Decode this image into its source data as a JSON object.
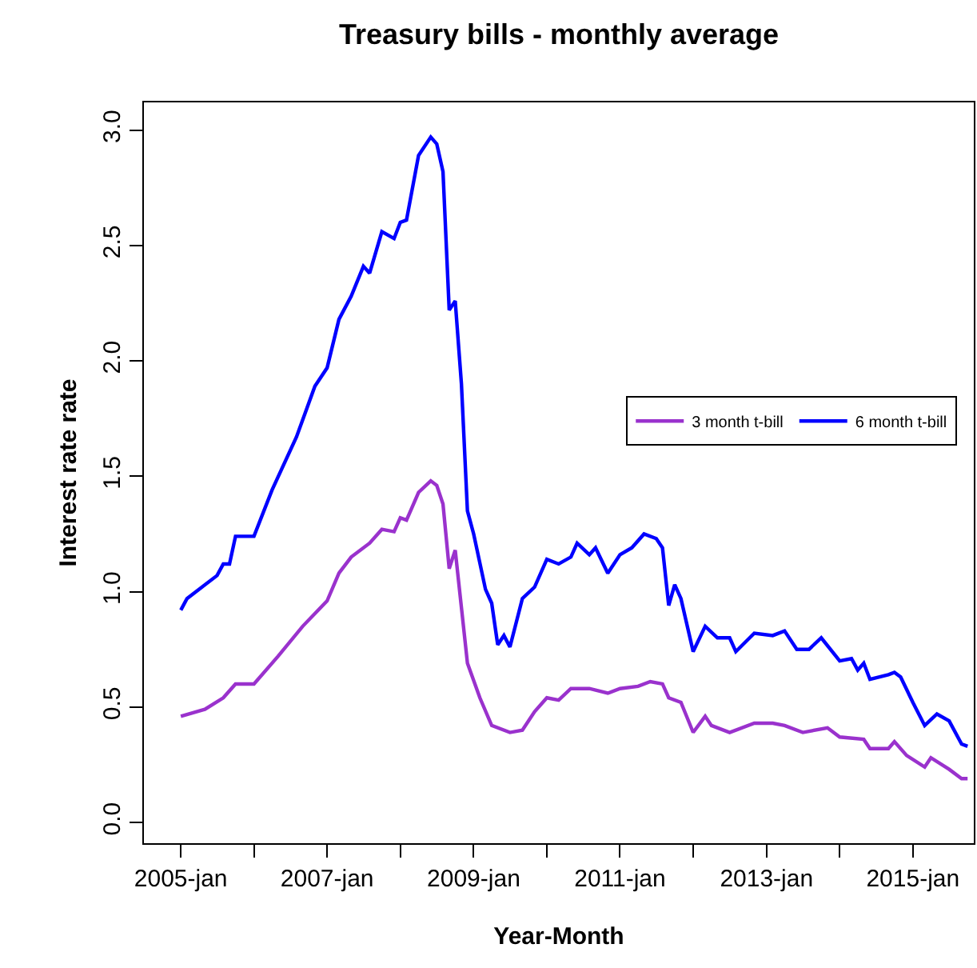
{
  "chart_data": {
    "type": "line",
    "title": "Treasury bills - monthly average",
    "xlabel": "Year-Month",
    "ylabel": "Interest rate rate",
    "xlim": [
      "2004-07",
      "2015-11"
    ],
    "xticks": [
      {
        "value": "2005-01",
        "label": "2005-jan"
      },
      {
        "value": "2006-01",
        "label": null
      },
      {
        "value": "2007-01",
        "label": "2007-jan"
      },
      {
        "value": "2008-01",
        "label": null
      },
      {
        "value": "2009-01",
        "label": "2009-jan"
      },
      {
        "value": "2010-01",
        "label": null
      },
      {
        "value": "2011-01",
        "label": "2011-jan"
      },
      {
        "value": "2012-01",
        "label": null
      },
      {
        "value": "2013-01",
        "label": "2013-jan"
      },
      {
        "value": "2014-01",
        "label": null
      },
      {
        "value": "2015-01",
        "label": "2015-jan"
      }
    ],
    "ylim": [
      -0.09,
      3.12
    ],
    "yticks": [
      {
        "value": 0,
        "label": "0.0"
      },
      {
        "value": 0.5,
        "label": "0.5"
      },
      {
        "value": 1,
        "label": "1.0"
      },
      {
        "value": 1.5,
        "label": "1.5"
      },
      {
        "value": 2,
        "label": "2.0"
      },
      {
        "value": 2.5,
        "label": "2.5"
      },
      {
        "value": 3,
        "label": "3.0"
      }
    ],
    "grid": false,
    "legend": "right",
    "marker": "none",
    "line_style": "solid",
    "series": [
      {
        "name": "3 month t-bill",
        "color": "#9a32cd",
        "x": [
          "2005-01",
          "2005-05",
          "2005-08",
          "2005-10",
          "2006-01",
          "2006-05",
          "2006-09",
          "2007-01",
          "2007-03",
          "2007-05",
          "2007-08",
          "2007-10",
          "2007-12",
          "2008-01",
          "2008-02",
          "2008-04",
          "2008-06",
          "2008-07",
          "2008-08",
          "2008-09",
          "2008-10",
          "2008-12",
          "2009-02",
          "2009-04",
          "2009-07",
          "2009-09",
          "2009-11",
          "2010-01",
          "2010-03",
          "2010-05",
          "2010-08",
          "2010-11",
          "2011-01",
          "2011-04",
          "2011-06",
          "2011-08",
          "2011-09",
          "2011-11",
          "2012-01",
          "2012-03",
          "2012-04",
          "2012-07",
          "2012-11",
          "2013-02",
          "2013-04",
          "2013-07",
          "2013-11",
          "2014-01",
          "2014-05",
          "2014-06",
          "2014-09",
          "2014-10",
          "2014-12",
          "2015-03",
          "2015-04",
          "2015-07",
          "2015-09",
          "2015-10"
        ],
        "values": [
          0.46,
          0.49,
          0.54,
          0.6,
          0.6,
          0.72,
          0.85,
          0.96,
          1.08,
          1.15,
          1.21,
          1.27,
          1.26,
          1.32,
          1.31,
          1.43,
          1.48,
          1.46,
          1.38,
          1.1,
          1.18,
          0.69,
          0.54,
          0.42,
          0.39,
          0.4,
          0.48,
          0.54,
          0.53,
          0.58,
          0.58,
          0.56,
          0.58,
          0.59,
          0.61,
          0.6,
          0.54,
          0.52,
          0.39,
          0.46,
          0.42,
          0.39,
          0.43,
          0.43,
          0.42,
          0.39,
          0.41,
          0.37,
          0.36,
          0.32,
          0.32,
          0.35,
          0.29,
          0.24,
          0.28,
          0.23,
          0.19,
          0.19
        ]
      },
      {
        "name": "6 month t-bill",
        "color": "#0000ff",
        "x": [
          "2005-01",
          "2005-02",
          "2005-07",
          "2005-08",
          "2005-09",
          "2005-10",
          "2006-01",
          "2006-04",
          "2006-08",
          "2006-11",
          "2007-01",
          "2007-03",
          "2007-05",
          "2007-07",
          "2007-08",
          "2007-10",
          "2007-12",
          "2008-01",
          "2008-02",
          "2008-04",
          "2008-06",
          "2008-07",
          "2008-08",
          "2008-09",
          "2008-10",
          "2008-11",
          "2008-12",
          "2009-01",
          "2009-03",
          "2009-04",
          "2009-05",
          "2009-06",
          "2009-07",
          "2009-09",
          "2009-11",
          "2010-01",
          "2010-03",
          "2010-05",
          "2010-06",
          "2010-08",
          "2010-09",
          "2010-11",
          "2011-01",
          "2011-03",
          "2011-05",
          "2011-07",
          "2011-08",
          "2011-09",
          "2011-10",
          "2011-11",
          "2012-01",
          "2012-03",
          "2012-05",
          "2012-07",
          "2012-08",
          "2012-11",
          "2013-02",
          "2013-04",
          "2013-06",
          "2013-08",
          "2013-10",
          "2014-01",
          "2014-03",
          "2014-04",
          "2014-05",
          "2014-06",
          "2014-09",
          "2014-10",
          "2014-11",
          "2015-01",
          "2015-03",
          "2015-05",
          "2015-07",
          "2015-09",
          "2015-10"
        ],
        "values": [
          0.92,
          0.97,
          1.07,
          1.12,
          1.12,
          1.24,
          1.24,
          1.44,
          1.67,
          1.89,
          1.97,
          2.18,
          2.28,
          2.41,
          2.38,
          2.56,
          2.53,
          2.6,
          2.61,
          2.89,
          2.97,
          2.94,
          2.82,
          2.22,
          2.26,
          1.9,
          1.35,
          1.25,
          1.01,
          0.95,
          0.77,
          0.81,
          0.76,
          0.97,
          1.02,
          1.14,
          1.12,
          1.15,
          1.21,
          1.16,
          1.19,
          1.08,
          1.16,
          1.19,
          1.25,
          1.23,
          1.19,
          0.94,
          1.03,
          0.97,
          0.74,
          0.85,
          0.8,
          0.8,
          0.74,
          0.82,
          0.81,
          0.83,
          0.75,
          0.75,
          0.8,
          0.7,
          0.71,
          0.66,
          0.69,
          0.62,
          0.64,
          0.65,
          0.63,
          0.52,
          0.42,
          0.47,
          0.44,
          0.34,
          0.33
        ]
      }
    ]
  }
}
